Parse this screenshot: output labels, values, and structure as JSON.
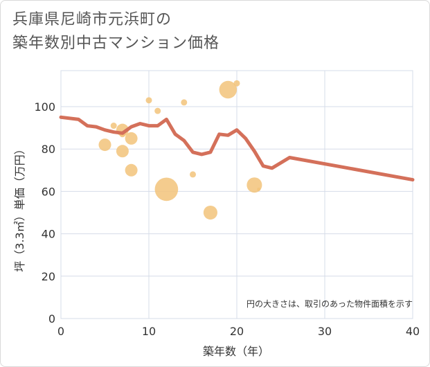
{
  "title_line1": "兵庫県尼崎市元浜町の",
  "title_line2": "築年数別中古マンション価格",
  "chart_data": {
    "type": "scatter",
    "xlabel": "築年数（年）",
    "ylabel": "坪（3.3㎡）単価（万円）",
    "xlim": [
      0,
      40
    ],
    "ylim": [
      0,
      117
    ],
    "x_ticks": [
      0,
      10,
      20,
      30,
      40
    ],
    "y_ticks": [
      0,
      20,
      40,
      60,
      80,
      100
    ],
    "grid": true,
    "note": "円の大きさは、取引のあった物件面積を示す",
    "colors": {
      "bubble": "#f2c37a",
      "line": "#d4705a",
      "grid": "#d6dce8"
    },
    "bubbles": [
      {
        "x": 5,
        "y": 82,
        "size": 4
      },
      {
        "x": 6,
        "y": 91,
        "size": 1
      },
      {
        "x": 7,
        "y": 89,
        "size": 4
      },
      {
        "x": 7,
        "y": 87,
        "size": 1
      },
      {
        "x": 7,
        "y": 79,
        "size": 4
      },
      {
        "x": 8,
        "y": 85,
        "size": 4
      },
      {
        "x": 8,
        "y": 70,
        "size": 4
      },
      {
        "x": 10,
        "y": 103,
        "size": 1
      },
      {
        "x": 11,
        "y": 98,
        "size": 1
      },
      {
        "x": 12,
        "y": 61,
        "size": 14
      },
      {
        "x": 14,
        "y": 102,
        "size": 1
      },
      {
        "x": 15,
        "y": 68,
        "size": 1
      },
      {
        "x": 17,
        "y": 50,
        "size": 5
      },
      {
        "x": 19,
        "y": 108,
        "size": 8
      },
      {
        "x": 20,
        "y": 111,
        "size": 1
      },
      {
        "x": 22,
        "y": 63,
        "size": 6
      },
      {
        "x": 22.5,
        "y": 61,
        "size": 0.3
      }
    ],
    "line": [
      {
        "x": 0,
        "y": 95
      },
      {
        "x": 2,
        "y": 94
      },
      {
        "x": 3,
        "y": 91
      },
      {
        "x": 4,
        "y": 90.5
      },
      {
        "x": 5,
        "y": 89
      },
      {
        "x": 6,
        "y": 88
      },
      {
        "x": 7,
        "y": 87.5
      },
      {
        "x": 8,
        "y": 90.5
      },
      {
        "x": 9,
        "y": 92
      },
      {
        "x": 10,
        "y": 91
      },
      {
        "x": 11,
        "y": 91
      },
      {
        "x": 12,
        "y": 94
      },
      {
        "x": 13,
        "y": 87
      },
      {
        "x": 14,
        "y": 84
      },
      {
        "x": 15,
        "y": 78.5
      },
      {
        "x": 16,
        "y": 77.5
      },
      {
        "x": 17,
        "y": 78.5
      },
      {
        "x": 18,
        "y": 87
      },
      {
        "x": 19,
        "y": 86.5
      },
      {
        "x": 20,
        "y": 89
      },
      {
        "x": 21,
        "y": 85
      },
      {
        "x": 22,
        "y": 79
      },
      {
        "x": 23,
        "y": 72
      },
      {
        "x": 24,
        "y": 71
      },
      {
        "x": 26,
        "y": 76
      },
      {
        "x": 40,
        "y": 65.5
      }
    ]
  }
}
